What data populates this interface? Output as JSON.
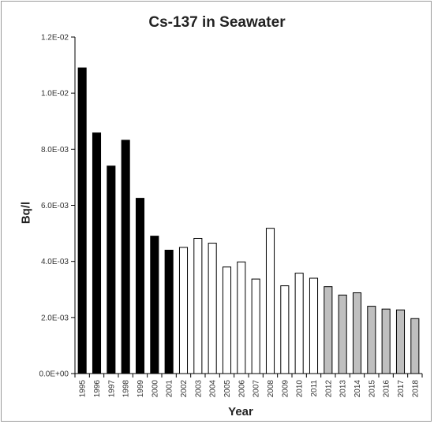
{
  "chart_data": {
    "type": "bar",
    "title": "Cs-137 in Seawater",
    "xlabel": "Year",
    "ylabel": "Bq/l",
    "ylim": [
      0,
      0.012
    ],
    "yticks": [
      "0.0E+00",
      "2.0E-03",
      "4.0E-03",
      "6.0E-03",
      "8.0E-03",
      "1.0E-02",
      "1.2E-02"
    ],
    "ytick_values": [
      0,
      0.002,
      0.004,
      0.006,
      0.008,
      0.01,
      0.012
    ],
    "grid": false,
    "legend": "none",
    "categories": [
      "1995",
      "1996",
      "1997",
      "1998",
      "1999",
      "2000",
      "2001",
      "2002",
      "2003",
      "2004",
      "2005",
      "2006",
      "2007",
      "2008",
      "2009",
      "2010",
      "2011",
      "2012",
      "2013",
      "2014",
      "2015",
      "2016",
      "2017",
      "2018"
    ],
    "values": [
      0.0109,
      0.00858,
      0.0074,
      0.00832,
      0.00625,
      0.0049,
      0.0044,
      0.0045,
      0.00482,
      0.00465,
      0.0038,
      0.00398,
      0.00337,
      0.00518,
      0.00313,
      0.00358,
      0.0034,
      0.0031,
      0.0028,
      0.00288,
      0.0024,
      0.0023,
      0.00227,
      0.00196
    ],
    "bar_fills": [
      "#000000",
      "#000000",
      "#000000",
      "#000000",
      "#000000",
      "#000000",
      "#000000",
      "#ffffff",
      "#ffffff",
      "#ffffff",
      "#ffffff",
      "#ffffff",
      "#ffffff",
      "#ffffff",
      "#ffffff",
      "#ffffff",
      "#ffffff",
      "#bfbfbf",
      "#bfbfbf",
      "#bfbfbf",
      "#bfbfbf",
      "#bfbfbf",
      "#bfbfbf",
      "#bfbfbf"
    ]
  }
}
